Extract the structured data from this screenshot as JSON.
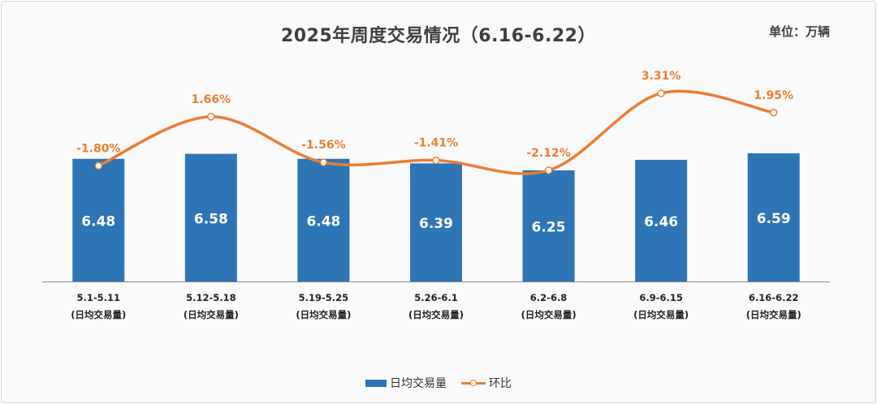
{
  "chart_data": {
    "type": "bar",
    "title": "2025年周度交易情况（6.16-6.22）",
    "unit_label": "单位：万辆",
    "categories": [
      [
        "5.1-5.11",
        "(日均交易量)"
      ],
      [
        "5.12-5.18",
        "(日均交易量)"
      ],
      [
        "5.19-5.25",
        "(日均交易量)"
      ],
      [
        "5.26-6.1",
        "(日均交易量)"
      ],
      [
        "6.2-6.8",
        "(日均交易量)"
      ],
      [
        "6.9-6.15",
        "(日均交易量)"
      ],
      [
        "6.16-6.22",
        "(日均交易量)"
      ]
    ],
    "series": [
      {
        "name": "日均交易量",
        "type": "bar",
        "color": "#2e75b6",
        "values": [
          6.48,
          6.58,
          6.48,
          6.39,
          6.25,
          6.46,
          6.59
        ],
        "labels": [
          "6.48",
          "6.58",
          "6.48",
          "6.39",
          "6.25",
          "6.46",
          "6.59"
        ]
      },
      {
        "name": "环比",
        "type": "line",
        "smooth": true,
        "color": "#ed7d31",
        "values": [
          -1.8,
          1.66,
          -1.56,
          -1.41,
          -2.12,
          3.31,
          1.95
        ],
        "labels": [
          "-1.80%",
          "1.66%",
          "-1.56%",
          "-1.41%",
          "-2.12%",
          "3.31%",
          "1.95%"
        ]
      }
    ],
    "legend_position": "bottom",
    "grid": false
  }
}
